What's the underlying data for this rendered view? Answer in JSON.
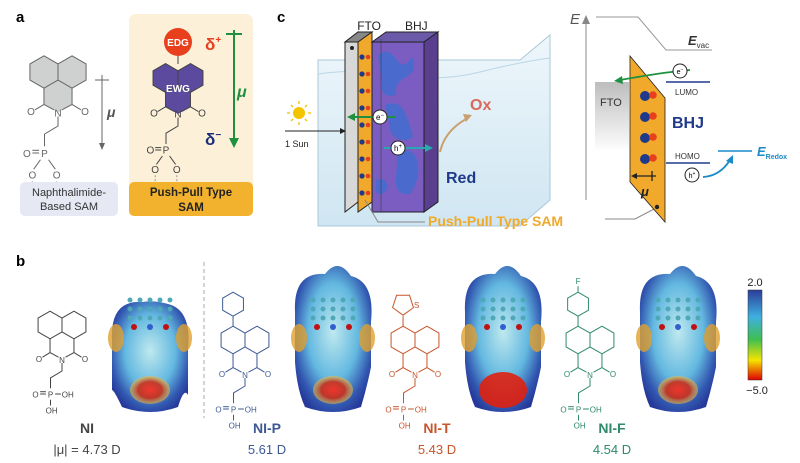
{
  "panels": {
    "a": "a",
    "b": "b",
    "c": "c"
  },
  "panel_a": {
    "left_label": "Naphthalimide-\nBased SAM",
    "left_label_lines": [
      "Naphthalimide-",
      "Based SAM"
    ],
    "right_label_lines": [
      "Push-Pull Type",
      "SAM"
    ],
    "edg": "EDG",
    "ewg": "EWG",
    "delta_plus": "δ",
    "delta_plus_sup": "+",
    "delta_minus": "δ",
    "delta_minus_sup": "−",
    "mu": "μ",
    "atoms": {
      "O": "O",
      "N": "N",
      "P": "P"
    },
    "colors": {
      "edg": "#e8401c",
      "ewg": "#5b4a9e",
      "dipole": "#1f9040",
      "delta_minus": "#1a2f7a",
      "sam_bg": "#fdf0d8",
      "sam_label": "#f3b22e",
      "nsam_label": "#e6e8f3"
    }
  },
  "panel_c": {
    "fto": "FTO",
    "bhj": "BHJ",
    "electron": "e",
    "electron_sup": "−",
    "hole": "h",
    "hole_sup": "+",
    "ox": "Ox",
    "red": "Red",
    "sun": "1 Sun",
    "sam": "Push-Pull Type SAM",
    "energy": {
      "axis": "E",
      "evac": "E",
      "evac_sub": "vac",
      "lumo": "LUMO",
      "homo": "HOMO",
      "fto": "FTO",
      "bhj": "BHJ",
      "eredox": "E",
      "eredox_sub": "Redox",
      "electron": "e",
      "electron_sup": "−",
      "hole": "h",
      "hole_sup": "+",
      "mu": "μ"
    },
    "colors": {
      "ox": "#d9695a",
      "red": "#1f3a8a",
      "sam": "#f0a92b",
      "bhj": "#1f3a8a",
      "redox": "#1a8ac8"
    }
  },
  "panel_b": {
    "molecules": [
      {
        "name": "NI",
        "dipole": "|μ| = 4.73 D",
        "color": "#444444",
        "substituent": ""
      },
      {
        "name": "NI-P",
        "dipole": "5.61 D",
        "color": "#3d5a93",
        "substituent": "phenyl"
      },
      {
        "name": "NI-T",
        "dipole": "5.43 D",
        "color": "#c8552a",
        "substituent": "thiophene"
      },
      {
        "name": "NI-F",
        "dipole": "4.54 D",
        "color": "#2e8a68",
        "substituent": "fluorophenyl"
      }
    ],
    "atoms": {
      "O": "O",
      "N": "N",
      "P": "P",
      "OH": "OH",
      "S": "S",
      "F": "F"
    },
    "colorbar": {
      "max": "2.0",
      "min": "−5.0",
      "colors": [
        "#2b3d9a",
        "#3fb0e0",
        "#3fbf50",
        "#f5e400",
        "#e00000"
      ]
    }
  }
}
